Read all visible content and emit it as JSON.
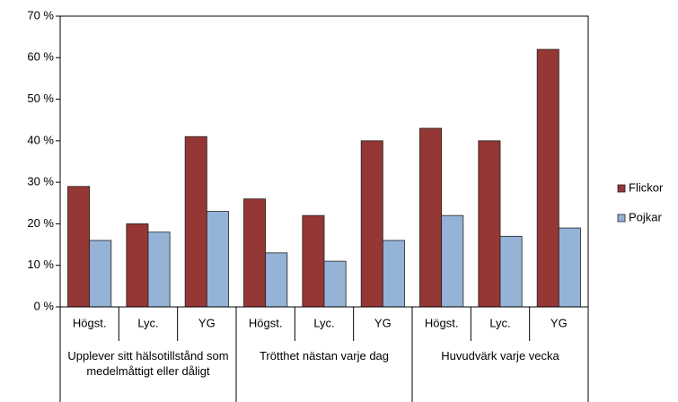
{
  "chart_data": {
    "type": "bar",
    "categories": [
      "Högst.",
      "Lyc.",
      "YG",
      "Högst.",
      "Lyc.",
      "YG",
      "Högst.",
      "Lyc.",
      "YG"
    ],
    "groups": [
      "Upplever sitt hälsotillstånd som medelmåttigt eller dåligt",
      "Trötthet nästan varje dag",
      "Huvudvärk varje vecka"
    ],
    "series": [
      {
        "name": "Flickor",
        "color": "#953735",
        "values": [
          29,
          20,
          41,
          26,
          22,
          40,
          43,
          40,
          62
        ]
      },
      {
        "name": "Pojkar",
        "color": "#95b3d7",
        "values": [
          16,
          18,
          23,
          13,
          11,
          16,
          22,
          17,
          19
        ]
      }
    ],
    "ylim": [
      0,
      70
    ],
    "yticks": [
      {
        "value": 0,
        "label": "0 %"
      },
      {
        "value": 10,
        "label": "10 %"
      },
      {
        "value": 20,
        "label": "20 %"
      },
      {
        "value": 30,
        "label": "30 %"
      },
      {
        "value": 40,
        "label": "40 %"
      },
      {
        "value": 50,
        "label": "50 %"
      },
      {
        "value": 60,
        "label": "60 %"
      },
      {
        "value": 70,
        "label": "70 %"
      }
    ],
    "legend": "right"
  }
}
